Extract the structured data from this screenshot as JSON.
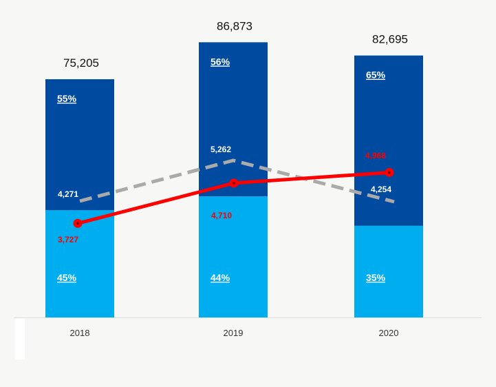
{
  "chart_data": {
    "type": "bar",
    "stacked": true,
    "categories": [
      "2018",
      "2019",
      "2020"
    ],
    "totals": [
      "75,205",
      "86,873",
      "82,695"
    ],
    "total_values": [
      75205,
      86873,
      82695
    ],
    "ylim": [
      0,
      100000
    ],
    "series": [
      {
        "name": "lower",
        "color": "#00aeef",
        "values": [
          33842,
          38224,
          28943
        ],
        "labels": [
          "45%",
          "44%",
          "35%"
        ]
      },
      {
        "name": "upper",
        "color": "#004a9f",
        "values": [
          41363,
          48649,
          53752
        ],
        "labels": [
          "55%",
          "56%",
          "65%"
        ]
      }
    ],
    "lines": [
      {
        "name": "dashed-line",
        "color": "#aaaaaa",
        "style": "dashed",
        "values": [
          4271,
          5262,
          4254
        ],
        "labels": [
          "4,271",
          "5,262",
          "4,254"
        ],
        "label_color": "#ffffff"
      },
      {
        "name": "red-line",
        "color": "#ff0000",
        "style": "solid",
        "values": [
          3727,
          4710,
          4968
        ],
        "labels": [
          "3,727",
          "4,710",
          "4,968"
        ],
        "label_color": "#ff0000"
      }
    ],
    "title": "",
    "xlabel": "",
    "ylabel": "",
    "legend": "none",
    "grid": false
  }
}
